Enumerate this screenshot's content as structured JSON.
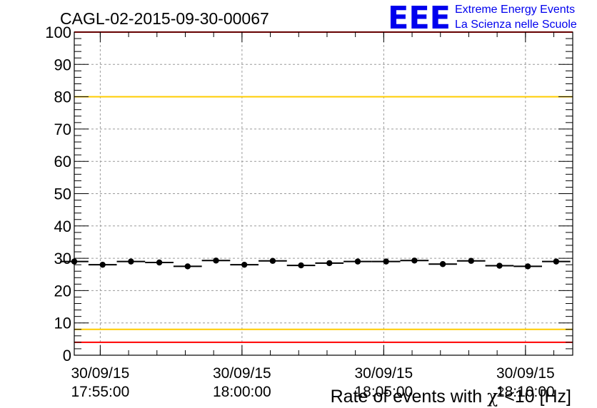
{
  "chart_data": {
    "type": "scatter",
    "title": "CAGL-02-2015-09-30-00067",
    "xlabel_prefix": "Rate of events with ",
    "xlabel_chi": "χ",
    "xlabel_exp": "2",
    "xlabel_suffix": "<10 [Hz]",
    "ylabel": "",
    "ylim": [
      0,
      100
    ],
    "yticks": [
      "0",
      "10",
      "20",
      "30",
      "40",
      "50",
      "60",
      "70",
      "80",
      "90",
      "100"
    ],
    "xticks": [
      {
        "date": "30/09/15",
        "time": "17:55:00"
      },
      {
        "date": "30/09/15",
        "time": "18:00:00"
      },
      {
        "date": "30/09/15",
        "time": "18:05:00"
      },
      {
        "date": "30/09/15",
        "time": "18:10:00"
      }
    ],
    "x_unit": "time (30/09/15)",
    "x_start": "17:54:05",
    "x_end": "18:11:40",
    "bin_minutes": 1,
    "series": [
      {
        "x": [
          "17:54:05",
          "17:55:05",
          "17:56:05",
          "17:57:05",
          "17:58:05",
          "17:59:05",
          "18:00:05",
          "18:01:05",
          "18:02:05",
          "18:03:05",
          "18:04:05",
          "18:05:05",
          "18:06:05",
          "18:07:05",
          "18:08:05",
          "18:09:05",
          "18:10:05",
          "18:11:05"
        ],
        "values": [
          29.0,
          28.0,
          29.0,
          28.7,
          27.5,
          29.3,
          28.0,
          29.2,
          27.8,
          28.5,
          29.0,
          29.0,
          29.3,
          28.2,
          29.2,
          27.7,
          27.5,
          29.0
        ]
      }
    ],
    "reference_lines": [
      {
        "value": 100,
        "color": "#ff0000"
      },
      {
        "value": 80,
        "color": "#ffcc00"
      },
      {
        "value": 8,
        "color": "#ffcc00"
      },
      {
        "value": 4,
        "color": "#ff0000"
      }
    ],
    "grid": true
  },
  "logo": {
    "letters": "EEE",
    "line1": "Extreme Energy Events",
    "line2": "La Scienza nelle Scuole",
    "color": "#0000ee"
  }
}
